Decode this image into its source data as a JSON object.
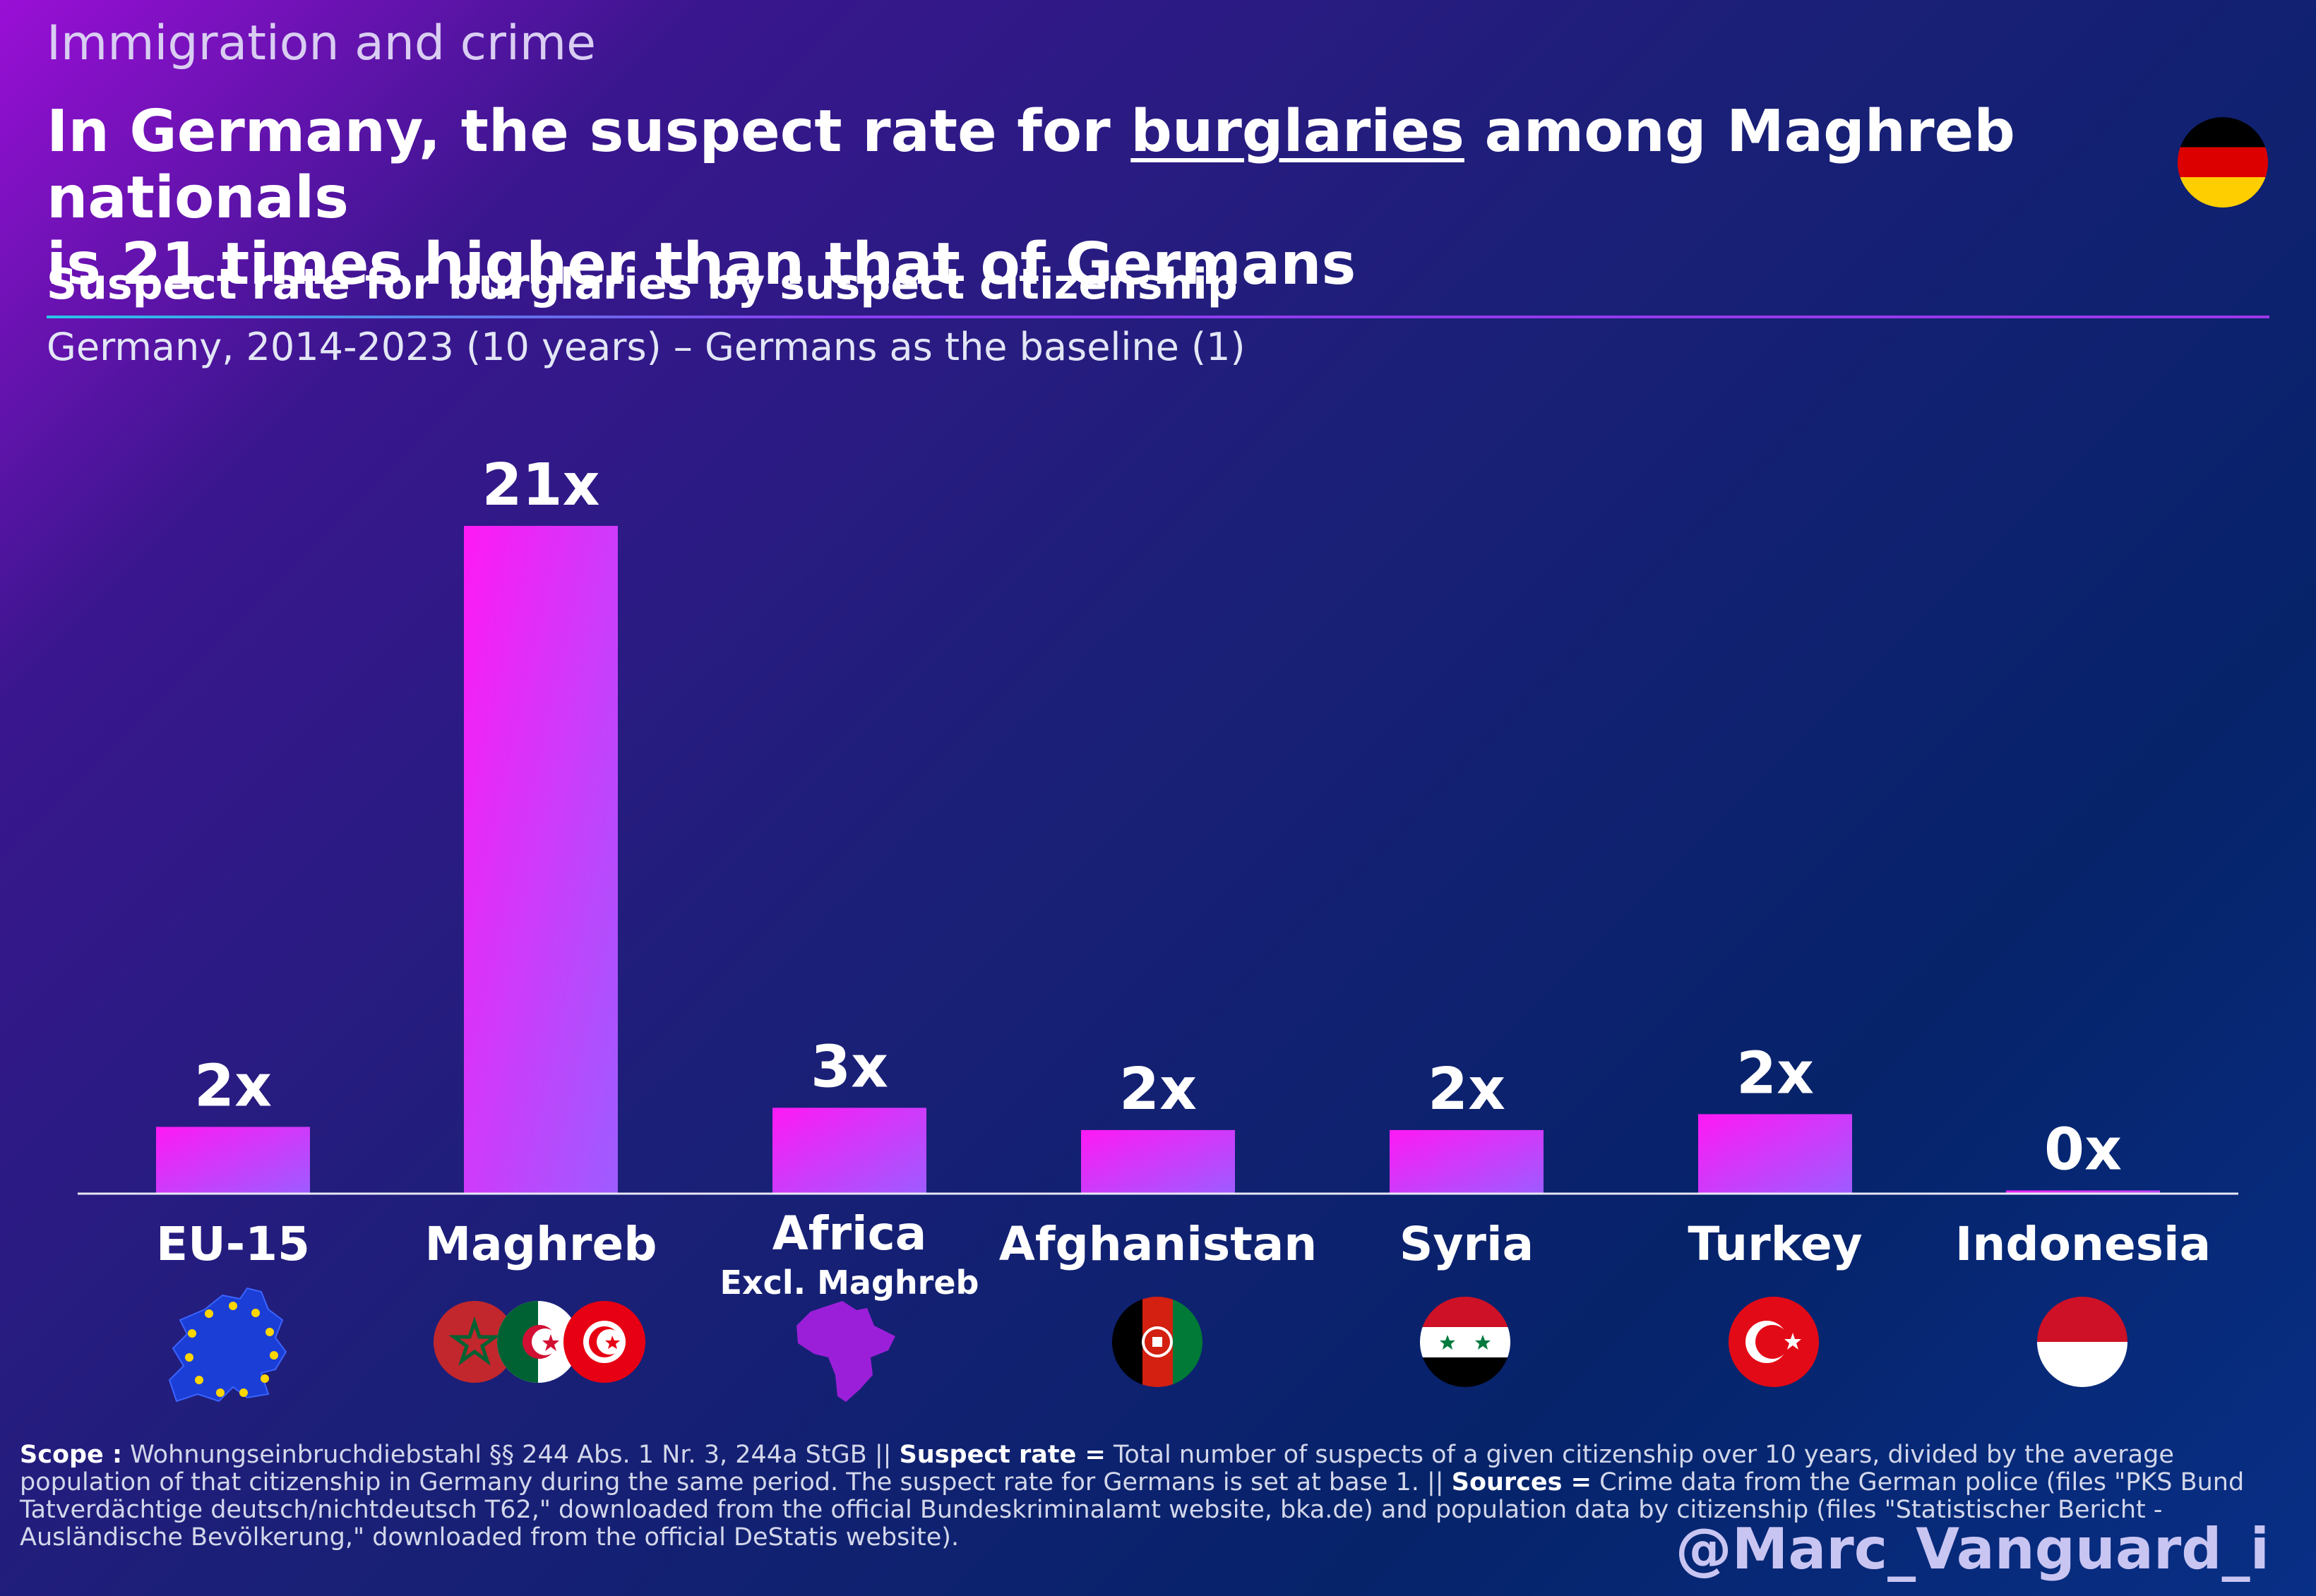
{
  "header": {
    "kicker": "Immigration and crime",
    "headline_line1_a": "In Germany, the suspect rate for ",
    "headline_line1_u": "burglaries",
    "headline_line1_b": " among Maghreb nationals",
    "headline_line2": "is 21 times higher than that of Germans",
    "subtitle": "Suspect rate for burglaries by suspect citizenship",
    "subtitle2": "Germany, 2014-2023 (10 years) – Germans as the baseline (1)"
  },
  "chart_data": {
    "type": "bar",
    "categories": [
      "EU-15",
      "Maghreb",
      "Africa",
      "Afghanistan",
      "Syria",
      "Turkey",
      "Indonesia"
    ],
    "category_sublabels": [
      "",
      "",
      "Excl. Maghreb",
      "",
      "",
      "",
      ""
    ],
    "values": [
      2.1,
      21,
      2.7,
      2.0,
      2.0,
      2.5,
      0.1
    ],
    "value_labels": [
      "2x",
      "21x",
      "3x",
      "2x",
      "2x",
      "2x",
      "0x"
    ],
    "ylim": [
      0,
      21
    ],
    "grid": false,
    "bar_colors": [
      "#ff19f5",
      "#9d5cff"
    ]
  },
  "icons": {
    "eu15": "eu-map-icon",
    "maghreb": "maghreb-flags-icon",
    "africa": "africa-map-icon",
    "afghanistan": "afghanistan-flag-icon",
    "syria": "syria-flag-icon",
    "turkey": "turkey-flag-icon",
    "indonesia": "indonesia-flag-icon",
    "germany": "germany-flag-icon"
  },
  "footnote": {
    "scope_label": "Scope :",
    "scope_text": " Wohnungseinbruchdiebstahl §§ 244 Abs. 1 Nr. 3, 244a StGB ||",
    "rate_label": "Suspect rate =",
    "rate_text": " Total number of suspects of a given citizenship over 10 years, divided by the average population of that citizenship in Germany during the same period. The suspect rate for Germans is set at base 1. ||",
    "sources_label": "Sources =",
    "sources_text": " Crime data from the German police (files \"PKS Bund Tatverdächtige deutsch/nichtdeutsch T62,\" downloaded from the official Bundeskriminalamt website, bka.de) and population data by citizenship (files \"Statistischer Bericht - Ausländische Bevölkerung,\" downloaded from the official DeStatis website)."
  },
  "handle": "@Marc_Vanguard_i"
}
